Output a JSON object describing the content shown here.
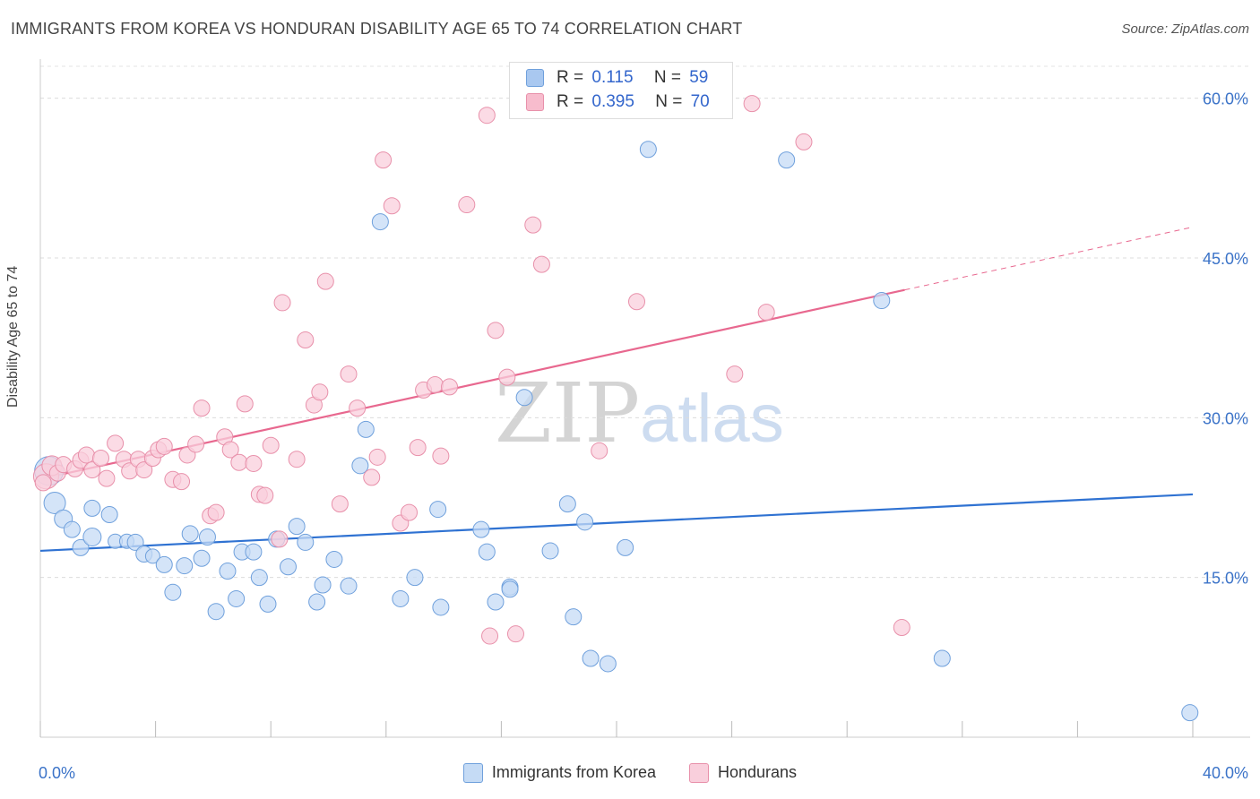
{
  "title": "IMMIGRANTS FROM KOREA VS HONDURAN DISABILITY AGE 65 TO 74 CORRELATION CHART",
  "source": "Source: ZipAtlas.com",
  "watermark": {
    "part1": "ZIP",
    "part2": "atlas"
  },
  "legend": {
    "rows": [
      {
        "r_label": "R =",
        "r_value": "0.115",
        "n_label": "N =",
        "n_value": "59",
        "color": "#a9c8f0",
        "border": "#6fa0dc"
      },
      {
        "r_label": "R =",
        "r_value": "0.395",
        "n_label": "N =",
        "n_value": "70",
        "color": "#f7bccd",
        "border": "#e890aa"
      }
    ]
  },
  "bottom_legend": [
    {
      "label": "Immigrants from Korea",
      "color": "#c5dbf5",
      "border": "#6fa0dc"
    },
    {
      "label": "Hondurans",
      "color": "#f9cfdc",
      "border": "#e890aa"
    }
  ],
  "chart_data": {
    "type": "scatter",
    "title": "IMMIGRANTS FROM KOREA VS HONDURAN DISABILITY AGE 65 TO 74 CORRELATION CHART",
    "xlabel": "",
    "ylabel": "Disability Age 65 to 74",
    "xlim": [
      0,
      40
    ],
    "ylim": [
      0,
      63
    ],
    "x_tick_labels": [
      "0.0%",
      "40.0%"
    ],
    "y_ticks": [
      15,
      30,
      45,
      60
    ],
    "y_tick_labels": [
      "15.0%",
      "30.0%",
      "45.0%",
      "60.0%"
    ],
    "grid": true,
    "legend_position": "top-center",
    "series": [
      {
        "name": "Immigrants from Korea",
        "color": "#6fa0dc",
        "fill": "#c5dbf5",
        "trend": {
          "x0": 0,
          "y0": 17.5,
          "x1": 40,
          "y1": 22.8,
          "color": "#2f72d2"
        },
        "points": [
          [
            0.3,
            25.0,
            16
          ],
          [
            0.5,
            22.0,
            12
          ],
          [
            0.8,
            20.5,
            10
          ],
          [
            1.1,
            19.5,
            9
          ],
          [
            1.4,
            17.8,
            9
          ],
          [
            1.8,
            18.8,
            10
          ],
          [
            1.8,
            21.5,
            9
          ],
          [
            2.4,
            20.9,
            9
          ],
          [
            2.6,
            18.4,
            8
          ],
          [
            3.0,
            18.4,
            8
          ],
          [
            3.3,
            18.3,
            9
          ],
          [
            3.6,
            17.2,
            9
          ],
          [
            3.9,
            17.0,
            8
          ],
          [
            4.3,
            16.2,
            9
          ],
          [
            4.6,
            13.6,
            9
          ],
          [
            5.0,
            16.1,
            9
          ],
          [
            5.2,
            19.1,
            9
          ],
          [
            5.6,
            16.8,
            9
          ],
          [
            5.8,
            18.8,
            9
          ],
          [
            6.1,
            11.8,
            9
          ],
          [
            6.5,
            15.6,
            9
          ],
          [
            6.8,
            13.0,
            9
          ],
          [
            7.0,
            17.4,
            9
          ],
          [
            7.4,
            17.4,
            9
          ],
          [
            7.6,
            15.0,
            9
          ],
          [
            7.9,
            12.5,
            9
          ],
          [
            8.2,
            18.6,
            9
          ],
          [
            8.6,
            16.0,
            9
          ],
          [
            8.9,
            19.8,
            9
          ],
          [
            9.2,
            18.3,
            9
          ],
          [
            9.6,
            12.7,
            9
          ],
          [
            9.8,
            14.3,
            9
          ],
          [
            10.2,
            16.7,
            9
          ],
          [
            10.7,
            14.2,
            9
          ],
          [
            11.1,
            25.5,
            9
          ],
          [
            11.3,
            28.9,
            9
          ],
          [
            11.8,
            48.4,
            9
          ],
          [
            12.5,
            13.0,
            9
          ],
          [
            13.0,
            15.0,
            9
          ],
          [
            13.8,
            21.4,
            9
          ],
          [
            13.9,
            12.2,
            9
          ],
          [
            15.3,
            19.5,
            9
          ],
          [
            15.5,
            17.4,
            9
          ],
          [
            15.8,
            12.7,
            9
          ],
          [
            16.3,
            14.1,
            9
          ],
          [
            16.3,
            13.9,
            9
          ],
          [
            16.8,
            31.9,
            9
          ],
          [
            17.7,
            17.5,
            9
          ],
          [
            18.3,
            21.9,
            9
          ],
          [
            18.5,
            11.3,
            9
          ],
          [
            18.9,
            20.2,
            9
          ],
          [
            19.1,
            7.4,
            9
          ],
          [
            19.7,
            6.9,
            9
          ],
          [
            20.3,
            17.8,
            9
          ],
          [
            21.1,
            55.2,
            9
          ],
          [
            25.9,
            54.2,
            9
          ],
          [
            29.2,
            41.0,
            9
          ],
          [
            31.3,
            7.4,
            9
          ],
          [
            39.9,
            2.3,
            9
          ]
        ]
      },
      {
        "name": "Hondurans",
        "color": "#e890aa",
        "fill": "#f9cfdc",
        "trend": {
          "x0": 0.1,
          "y0": 24.3,
          "x1": 30.0,
          "y1": 42.0,
          "x2": 40,
          "y2": 47.9,
          "color": "#e8688f"
        },
        "points": [
          [
            0.2,
            24.5,
            14
          ],
          [
            0.4,
            25.5,
            11
          ],
          [
            0.6,
            24.8,
            9
          ],
          [
            0.8,
            25.6,
            9
          ],
          [
            1.2,
            25.2,
            9
          ],
          [
            1.4,
            26.0,
            9
          ],
          [
            1.6,
            26.5,
            9
          ],
          [
            1.8,
            25.1,
            9
          ],
          [
            2.1,
            26.2,
            9
          ],
          [
            2.3,
            24.3,
            9
          ],
          [
            2.6,
            27.6,
            9
          ],
          [
            2.9,
            26.1,
            9
          ],
          [
            3.1,
            25.0,
            9
          ],
          [
            3.4,
            26.1,
            9
          ],
          [
            3.6,
            25.1,
            9
          ],
          [
            3.9,
            26.2,
            9
          ],
          [
            4.1,
            27.0,
            9
          ],
          [
            4.3,
            27.3,
            9
          ],
          [
            4.6,
            24.2,
            9
          ],
          [
            4.9,
            24.0,
            9
          ],
          [
            5.1,
            26.5,
            9
          ],
          [
            5.4,
            27.5,
            9
          ],
          [
            5.6,
            30.9,
            9
          ],
          [
            5.9,
            20.8,
            9
          ],
          [
            6.1,
            21.1,
            9
          ],
          [
            6.4,
            28.2,
            9
          ],
          [
            6.6,
            27.0,
            9
          ],
          [
            6.9,
            25.8,
            9
          ],
          [
            7.1,
            31.3,
            9
          ],
          [
            7.4,
            25.7,
            9
          ],
          [
            7.6,
            22.8,
            9
          ],
          [
            7.8,
            22.7,
            9
          ],
          [
            8.0,
            27.4,
            9
          ],
          [
            8.3,
            18.6,
            9
          ],
          [
            8.4,
            40.8,
            9
          ],
          [
            8.9,
            26.1,
            9
          ],
          [
            9.2,
            37.3,
            9
          ],
          [
            9.5,
            31.2,
            9
          ],
          [
            9.7,
            32.4,
            9
          ],
          [
            9.9,
            42.8,
            9
          ],
          [
            10.4,
            21.9,
            9
          ],
          [
            10.7,
            34.1,
            9
          ],
          [
            11.0,
            30.9,
            9
          ],
          [
            11.5,
            24.4,
            9
          ],
          [
            11.7,
            26.3,
            9
          ],
          [
            11.9,
            54.2,
            9
          ],
          [
            12.2,
            49.9,
            9
          ],
          [
            12.5,
            20.1,
            9
          ],
          [
            12.8,
            21.1,
            9
          ],
          [
            13.1,
            27.2,
            9
          ],
          [
            13.3,
            32.6,
            9
          ],
          [
            13.7,
            33.1,
            9
          ],
          [
            13.9,
            26.4,
            9
          ],
          [
            14.2,
            32.9,
            9
          ],
          [
            14.8,
            50.0,
            9
          ],
          [
            15.5,
            58.4,
            9
          ],
          [
            15.6,
            9.5,
            9
          ],
          [
            15.8,
            38.2,
            9
          ],
          [
            16.2,
            33.8,
            9
          ],
          [
            16.5,
            9.7,
            9
          ],
          [
            17.1,
            48.1,
            9
          ],
          [
            17.4,
            44.4,
            9
          ],
          [
            19.4,
            26.9,
            9
          ],
          [
            20.7,
            40.9,
            9
          ],
          [
            24.1,
            34.1,
            9
          ],
          [
            24.7,
            59.5,
            9
          ],
          [
            25.2,
            39.9,
            9
          ],
          [
            26.5,
            55.9,
            9
          ],
          [
            29.9,
            10.3,
            9
          ],
          [
            0.1,
            23.9,
            9
          ]
        ]
      }
    ]
  }
}
